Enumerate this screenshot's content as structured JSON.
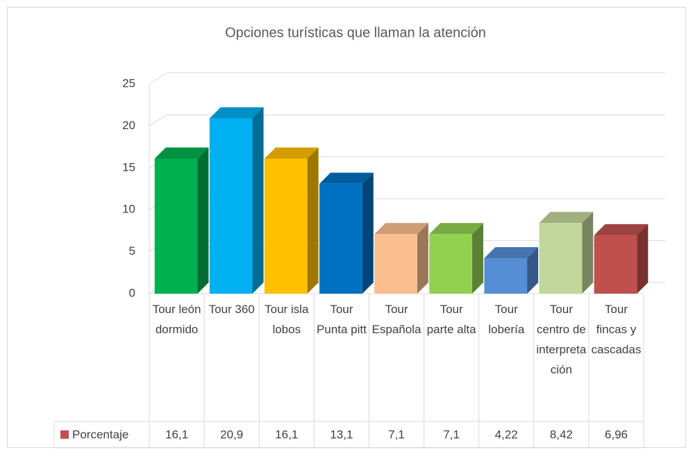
{
  "chart_data": {
    "type": "bar",
    "title": "Opciones turísticas que llaman la atención",
    "categories": [
      "Tour león dormido",
      "Tour 360",
      "Tour isla lobos",
      "Tour Punta pitt",
      "Tour Española",
      "Tour parte alta",
      "Tour lobería",
      "Tour centro de interpretación",
      "Tour fincas y cascadas"
    ],
    "series": [
      {
        "name": "Porcentaje",
        "color": "#c0504d",
        "colors": [
          "#00b050",
          "#00b0f0",
          "#ffc000",
          "#0070c0",
          "#fabf8f",
          "#92d050",
          "#558ed5",
          "#c3d69b",
          "#c0504d"
        ],
        "values": [
          16.1,
          20.9,
          16.1,
          13.1,
          7.1,
          7.1,
          4.22,
          8.42,
          6.96
        ],
        "value_labels": [
          "16,1",
          "20,9",
          "16,1",
          "13,1",
          "7,1",
          "7,1",
          "4,22",
          "8,42",
          "6,96"
        ]
      }
    ],
    "ylim": [
      0,
      25
    ],
    "yticks": [
      0,
      5,
      10,
      15,
      20,
      25
    ],
    "grid": true
  }
}
